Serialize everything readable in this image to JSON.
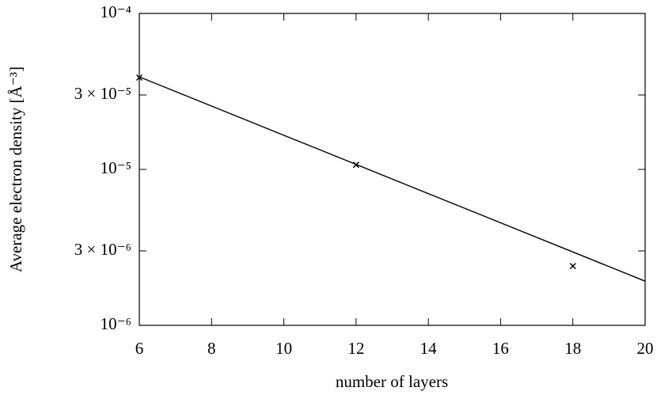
{
  "chart_data": {
    "type": "scatter",
    "x_label": "number of layers",
    "y_label": "Average electron density [Å⁻³]",
    "xlim": [
      6,
      20
    ],
    "xticks": [
      6,
      8,
      10,
      12,
      14,
      16,
      18,
      20
    ],
    "ylim": [
      1e-06,
      0.0001
    ],
    "log_y": true,
    "yticks": [
      {
        "value": 1e-06,
        "label": "10⁻⁶"
      },
      {
        "value": 3e-06,
        "label": "3 × 10⁻⁶"
      },
      {
        "value": 1e-05,
        "label": "10⁻⁵"
      },
      {
        "value": 3e-05,
        "label": "3 × 10⁻⁵"
      },
      {
        "value": 0.0001,
        "label": "10⁻⁴"
      }
    ],
    "color": "#000000",
    "points": {
      "x": [
        6,
        12,
        18
      ],
      "y": [
        3.88e-05,
        1.07e-05,
        2.4e-06
      ]
    },
    "fit": {
      "x": [
        6,
        20
      ],
      "y": [
        3.92e-05,
        1.92e-06
      ]
    }
  }
}
